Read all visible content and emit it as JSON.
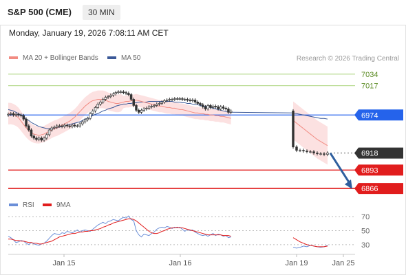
{
  "header": {
    "title": "S&P 500 (CME)",
    "timeframe": "30 MIN",
    "datetime": "Monday, January 19, 2026 7:08:11 AM CET"
  },
  "legend": {
    "ma20": "MA 20 + Bollinger Bands",
    "ma50": "MA 50",
    "source": "Research © 2026 Trading Central",
    "rsi": "RSI",
    "rsi_ma": "9MA"
  },
  "colors": {
    "candle": "#333333",
    "ma20": "#f28b82",
    "bollinger_fill": "#fbdcdc",
    "ma50": "#3b5998",
    "pivot": "#2563eb",
    "resistance": "#8bc34a",
    "support": "#e11d1d",
    "last_price": "#333333",
    "arrow": "#2f5f9e",
    "rsi": "#6b8fd8",
    "rsi_ma": "#e11d1d"
  },
  "chart_data": [
    {
      "type": "candlestick",
      "title": "",
      "x_tick_labels": [
        "Jan 15",
        "Jan 16",
        "Jan 19",
        "Jan 25"
      ],
      "ylim": [
        6860,
        7042
      ],
      "levels": [
        {
          "name": "resistance_2",
          "value": 7034,
          "label": "7034",
          "kind": "resistance"
        },
        {
          "name": "resistance_1",
          "value": 7017,
          "label": "7017",
          "kind": "resistance"
        },
        {
          "name": "pivot",
          "value": 6974,
          "label": "6974",
          "kind": "pivot"
        },
        {
          "name": "last",
          "value": 6918,
          "label": "6918",
          "kind": "last"
        },
        {
          "name": "support_1",
          "value": 6893,
          "label": "6893",
          "kind": "support"
        },
        {
          "name": "support_2",
          "value": 6866,
          "label": "6866",
          "kind": "support"
        }
      ],
      "close": [
        6975,
        6976,
        6974,
        6975,
        6974,
        6973,
        6968,
        6958,
        6952,
        6943,
        6940,
        6938,
        6940,
        6937,
        6940,
        6945,
        6952,
        6955,
        6956,
        6958,
        6958,
        6957,
        6959,
        6958,
        6957,
        6959,
        6958,
        6958,
        6961,
        6964,
        6967,
        6969,
        6976,
        6980,
        6985,
        6990,
        6993,
        6997,
        7000,
        7001,
        7003,
        7005,
        7007,
        7008,
        7008,
        7007,
        7006,
        7004,
        6997,
        6988,
        6981,
        6978,
        6981,
        6983,
        6984,
        6986,
        6987,
        6988,
        6990,
        6991,
        6993,
        6995,
        6996,
        6997,
        6997,
        6998,
        6998,
        6998,
        6997,
        6997,
        6996,
        6995,
        6996,
        6993,
        6991,
        6989,
        6986,
        6983,
        6988,
        6985,
        6987,
        6986,
        6983,
        6986,
        6984,
        6983,
        6978,
        6980,
        6927,
        6922,
        6922,
        6921,
        6920,
        6920,
        6918,
        6917,
        6917,
        6916,
        6918
      ],
      "gap_after_index": 87,
      "projection": {
        "from": 6918,
        "to": 6866
      },
      "series": [
        {
          "name": "MA 20 + Bollinger Bands",
          "values": [
            6976,
            6976,
            6975,
            6973,
            6970,
            6965,
            6960,
            6955,
            6951,
            6948,
            6946,
            6945,
            6944,
            6945,
            6946,
            6948,
            6950,
            6952,
            6954,
            6955,
            6957,
            6959,
            6961,
            6963,
            6965,
            6968,
            6971,
            6975,
            6979,
            6983,
            6987,
            6990,
            6993,
            6995,
            6996,
            6997,
            6997,
            6997,
            6996,
            6994,
            6993,
            6992,
            6991,
            6991,
            6992,
            6993,
            6994,
            6994,
            6995,
            6995,
            6996,
            6995,
            6994,
            6993,
            6992,
            6991,
            6990,
            6989,
            6988,
            6987,
            6987,
            6986,
            6985,
            6985,
            6984,
            6984,
            6983,
            6982,
            6982,
            6981,
            6980,
            6979,
            6978,
            6977,
            6977,
            6976,
            6976,
            6975,
            6975,
            6974,
            6974,
            6973,
            6973,
            6972,
            6972,
            6971,
            6970,
            6969,
            6966,
            6962,
            6958,
            6954,
            6950,
            6946,
            6942,
            6938,
            6935,
            6932,
            6929
          ]
        },
        {
          "name": "MA 50",
          "values": [
            6982,
            6981,
            6980,
            6978,
            6976,
            6974,
            6971,
            6968,
            6966,
            6963,
            6961,
            6959,
            6957,
            6956,
            6955,
            6954,
            6954,
            6954,
            6954,
            6955,
            6956,
            6957,
            6958,
            6959,
            6960,
            6961,
            6962,
            6963,
            6964,
            6966,
            6968,
            6969,
            6971,
            6973,
            6975,
            6976,
            6978,
            6980,
            6981,
            6983,
            6984,
            6985,
            6987,
            6988,
            6989,
            6990,
            6990,
            6991,
            6991,
            6992,
            6992,
            6993,
            6993,
            6993,
            6993,
            6994,
            6994,
            6994,
            6994,
            6994,
            6994,
            6994,
            6994,
            6994,
            6994,
            6993,
            6993,
            6993,
            6992,
            6992,
            6991,
            6991,
            6990,
            6989,
            6989,
            6988,
            6987,
            6987,
            6986,
            6985,
            6984,
            6983,
            6982,
            6981,
            6980,
            6979,
            6978,
            6978,
            6977,
            6976,
            6975,
            6974,
            6973,
            6972,
            6971,
            6970,
            6969,
            6969,
            6968
          ]
        }
      ]
    },
    {
      "type": "line",
      "title": "",
      "y_ticks": [
        30,
        50,
        70
      ],
      "ylim": [
        20,
        80
      ],
      "series": [
        {
          "name": "RSI",
          "values": [
            42,
            40,
            37,
            33,
            34,
            36,
            35,
            32,
            30,
            33,
            31,
            30,
            29,
            31,
            32,
            35,
            39,
            43,
            46,
            45,
            44,
            47,
            46,
            49,
            48,
            47,
            49,
            51,
            48,
            50,
            51,
            50,
            49,
            52,
            55,
            58,
            60,
            62,
            60,
            63,
            64,
            66,
            65,
            64,
            67,
            69,
            68,
            71,
            66,
            64,
            50,
            44,
            41,
            45,
            44,
            43,
            46,
            48,
            52,
            54,
            55,
            54,
            56,
            55,
            53,
            55,
            54,
            55,
            52,
            49,
            52,
            50,
            51,
            48,
            46,
            44,
            43,
            44,
            42,
            44,
            46,
            43,
            45,
            44,
            42,
            43,
            40,
            41,
            26,
            25,
            26,
            28,
            27,
            29,
            28,
            27,
            26,
            27,
            29
          ]
        },
        {
          "name": "9MA",
          "values": [
            38,
            38,
            37,
            36,
            36,
            35,
            35,
            34,
            33,
            33,
            32,
            32,
            31,
            31,
            32,
            33,
            34,
            35,
            37,
            39,
            41,
            42,
            43,
            44,
            45,
            46,
            46,
            47,
            48,
            48,
            49,
            49,
            50,
            50,
            51,
            52,
            53,
            55,
            56,
            58,
            59,
            61,
            62,
            63,
            64,
            65,
            66,
            67,
            67,
            66,
            64,
            61,
            58,
            55,
            52,
            49,
            47,
            46,
            46,
            47,
            49,
            50,
            52,
            53,
            54,
            54,
            55,
            54,
            54,
            53,
            52,
            51,
            50,
            49,
            48,
            47,
            46,
            45,
            44,
            44,
            44,
            44,
            44,
            44,
            43,
            43,
            43,
            42,
            40,
            37,
            34,
            32,
            30,
            29,
            28,
            27,
            27,
            27,
            28
          ]
        }
      ]
    }
  ]
}
